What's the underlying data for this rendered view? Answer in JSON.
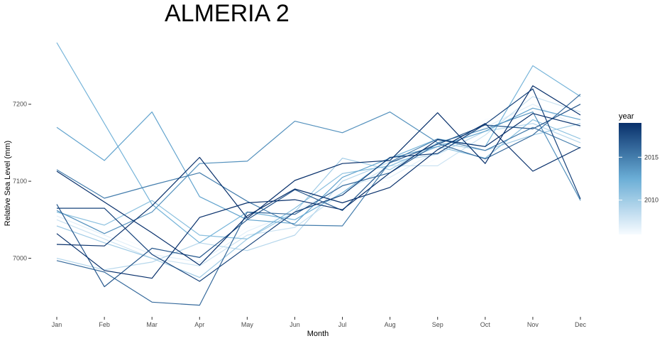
{
  "chart_data": {
    "type": "line",
    "title": "ALMERIA 2",
    "xlabel": "Month",
    "ylabel": "Relative Sea Level (mm)",
    "categories": [
      "Jan",
      "Feb",
      "Mar",
      "Apr",
      "May",
      "Jun",
      "Jul",
      "Aug",
      "Sep",
      "Oct",
      "Nov",
      "Dec"
    ],
    "ylim": [
      6940,
      7280
    ],
    "yticks": [
      7000,
      7100,
      7200
    ],
    "grid": false,
    "legend": {
      "title": "year",
      "placement": "right",
      "type": "colorbar",
      "range": [
        2006,
        2019
      ],
      "ticks": [
        2010,
        2015
      ],
      "color_low": "#f7fbff",
      "color_high": "#08306b"
    },
    "series": [
      {
        "year": 2006,
        "values": [
          7060,
          7035,
          7010,
          7000,
          7040,
          7050,
          7090,
          7100,
          7130,
          7180,
          7190,
          7185
        ]
      },
      {
        "year": 2007,
        "values": [
          7055,
          7030,
          7005,
          6995,
          7035,
          7060,
          7095,
          7105,
          7140,
          7170,
          7200,
          7170
        ]
      },
      {
        "year": 2008,
        "values": [
          7050,
          7025,
          7000,
          6990,
          7030,
          7040,
          7085,
          7120,
          7120,
          7160,
          7210,
          7190
        ]
      },
      {
        "year": 2009,
        "values": [
          7000,
          6985,
          6995,
          7020,
          7010,
          7030,
          7100,
          7125,
          7135,
          7165,
          7175,
          7150
        ]
      },
      {
        "year": 2010,
        "values": [
          7042,
          7020,
          7000,
          6975,
          7025,
          7060,
          7130,
          7115,
          7150,
          7140,
          7160,
          7175
        ]
      },
      {
        "year": 2011,
        "values": [
          7060,
          7043,
          7075,
          7030,
          7025,
          7065,
          7110,
          7120,
          7145,
          7130,
          7180,
          7155
        ]
      },
      {
        "year": 2012,
        "values": [
          7280,
          7175,
          7070,
          7020,
          7060,
          7050,
          7085,
          7130,
          7155,
          7145,
          7250,
          7210
        ]
      },
      {
        "year": 2013,
        "values": [
          7170,
          7127,
          7190,
          7080,
          7050,
          7045,
          7105,
          7130,
          7145,
          7165,
          7195,
          7180
        ]
      },
      {
        "year": 2014,
        "values": [
          7062,
          7032,
          7060,
          7123,
          7126,
          7178,
          7163,
          7190,
          7150,
          7168,
          7190,
          7075
        ]
      },
      {
        "year": 2015,
        "values": [
          7115,
          7078,
          7095,
          7111,
          7074,
          7043,
          7042,
          7125,
          7155,
          7140,
          7170,
          7143
        ]
      },
      {
        "year": 2016,
        "values": [
          6997,
          6982,
          6943,
          6939,
          7060,
          7057,
          7094,
          7111,
          7149,
          7129,
          7160,
          7213
        ]
      },
      {
        "year": 2017,
        "values": [
          7070,
          6963,
          7013,
          7001,
          7050,
          7089,
          7062,
          7124,
          7148,
          7173,
          7168,
          7200
        ]
      },
      {
        "year": 2018,
        "values": [
          7065,
          7065,
          7005,
          6970,
          7015,
          7060,
          7082,
          7131,
          7136,
          7174,
          7220,
          7077
        ]
      },
      {
        "year": 2019,
        "values": [
          7032,
          6984,
          6974,
          7053,
          7072,
          7076,
          7063,
          7111,
          7154,
          7145,
          7188,
          7172
        ]
      },
      {
        "year": 2020,
        "values": [
          7018,
          7016,
          7068,
          7131,
          7052,
          7101,
          7123,
          7127,
          7189,
          7123,
          7224,
          7186
        ]
      },
      {
        "year": 2021,
        "values": [
          7113,
          7073,
          7033,
          6991,
          7055,
          7090,
          7072,
          7092,
          7141,
          7175,
          7113,
          7144
        ]
      }
    ]
  }
}
